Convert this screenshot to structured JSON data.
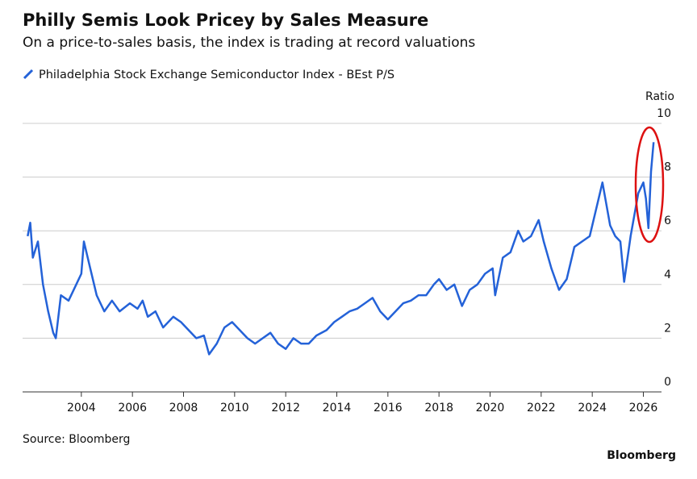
{
  "chart_data": {
    "type": "line",
    "title": "Philly Semis Look Pricey by Sales Measure",
    "subtitle": "On a price-to-sales basis, the index is trading at record valuations",
    "y_axis_label": "Ratio",
    "source": "Source: Bloomberg",
    "brand": "Bloomberg",
    "xlim": [
      2001.7,
      2026.9
    ],
    "xticks": [
      2004,
      2006,
      2008,
      2010,
      2012,
      2014,
      2016,
      2018,
      2020,
      2022,
      2024,
      2026
    ],
    "ylim": [
      0,
      10
    ],
    "yticks": [
      0,
      2,
      4,
      6,
      8,
      10
    ],
    "grid": true,
    "x": [
      2001.9,
      2002.0,
      2002.1,
      2002.3,
      2002.5,
      2002.7,
      2002.9,
      2003.0,
      2003.2,
      2003.5,
      2003.8,
      2004.0,
      2004.1,
      2004.3,
      2004.6,
      2004.9,
      2005.2,
      2005.5,
      2005.9,
      2006.2,
      2006.4,
      2006.6,
      2006.9,
      2007.2,
      2007.6,
      2007.9,
      2008.2,
      2008.5,
      2008.8,
      2009.0,
      2009.3,
      2009.6,
      2009.9,
      2010.2,
      2010.5,
      2010.8,
      2011.1,
      2011.4,
      2011.7,
      2012.0,
      2012.3,
      2012.6,
      2012.9,
      2013.2,
      2013.6,
      2013.9,
      2014.2,
      2014.5,
      2014.8,
      2015.1,
      2015.4,
      2015.7,
      2016.0,
      2016.3,
      2016.6,
      2016.9,
      2017.2,
      2017.5,
      2017.8,
      2018.0,
      2018.3,
      2018.6,
      2018.9,
      2019.2,
      2019.5,
      2019.8,
      2020.1,
      2020.2,
      2020.5,
      2020.8,
      2021.1,
      2021.3,
      2021.6,
      2021.9,
      2022.1,
      2022.4,
      2022.7,
      2023.0,
      2023.3,
      2023.6,
      2023.9,
      2024.2,
      2024.4,
      2024.7,
      2024.9,
      2025.1,
      2025.25,
      2025.5,
      2025.8,
      2026.0,
      2026.1,
      2026.2,
      2026.3,
      2026.4
    ],
    "series": [
      {
        "name": "Philadelphia Stock Exchange Semiconductor Index - BEst P/S",
        "color": "#2462d8",
        "values": [
          5.8,
          6.3,
          5.0,
          5.6,
          4.0,
          3.0,
          2.2,
          2.0,
          3.6,
          3.4,
          4.0,
          4.4,
          5.6,
          4.8,
          3.6,
          3.0,
          3.4,
          3.0,
          3.3,
          3.1,
          3.4,
          2.8,
          3.0,
          2.4,
          2.8,
          2.6,
          2.3,
          2.0,
          2.1,
          1.4,
          1.8,
          2.4,
          2.6,
          2.3,
          2.0,
          1.8,
          2.0,
          2.2,
          1.8,
          1.6,
          2.0,
          1.8,
          1.8,
          2.1,
          2.3,
          2.6,
          2.8,
          3.0,
          3.1,
          3.3,
          3.5,
          3.0,
          2.7,
          3.0,
          3.3,
          3.4,
          3.6,
          3.6,
          4.0,
          4.2,
          3.8,
          4.0,
          3.2,
          3.8,
          4.0,
          4.4,
          4.6,
          3.6,
          5.0,
          5.2,
          6.0,
          5.6,
          5.8,
          6.4,
          5.6,
          4.6,
          3.8,
          4.2,
          5.4,
          5.6,
          5.8,
          7.0,
          7.8,
          6.2,
          5.8,
          5.6,
          4.1,
          5.8,
          7.4,
          7.8,
          7.2,
          6.1,
          8.2,
          9.3
        ]
      }
    ]
  }
}
